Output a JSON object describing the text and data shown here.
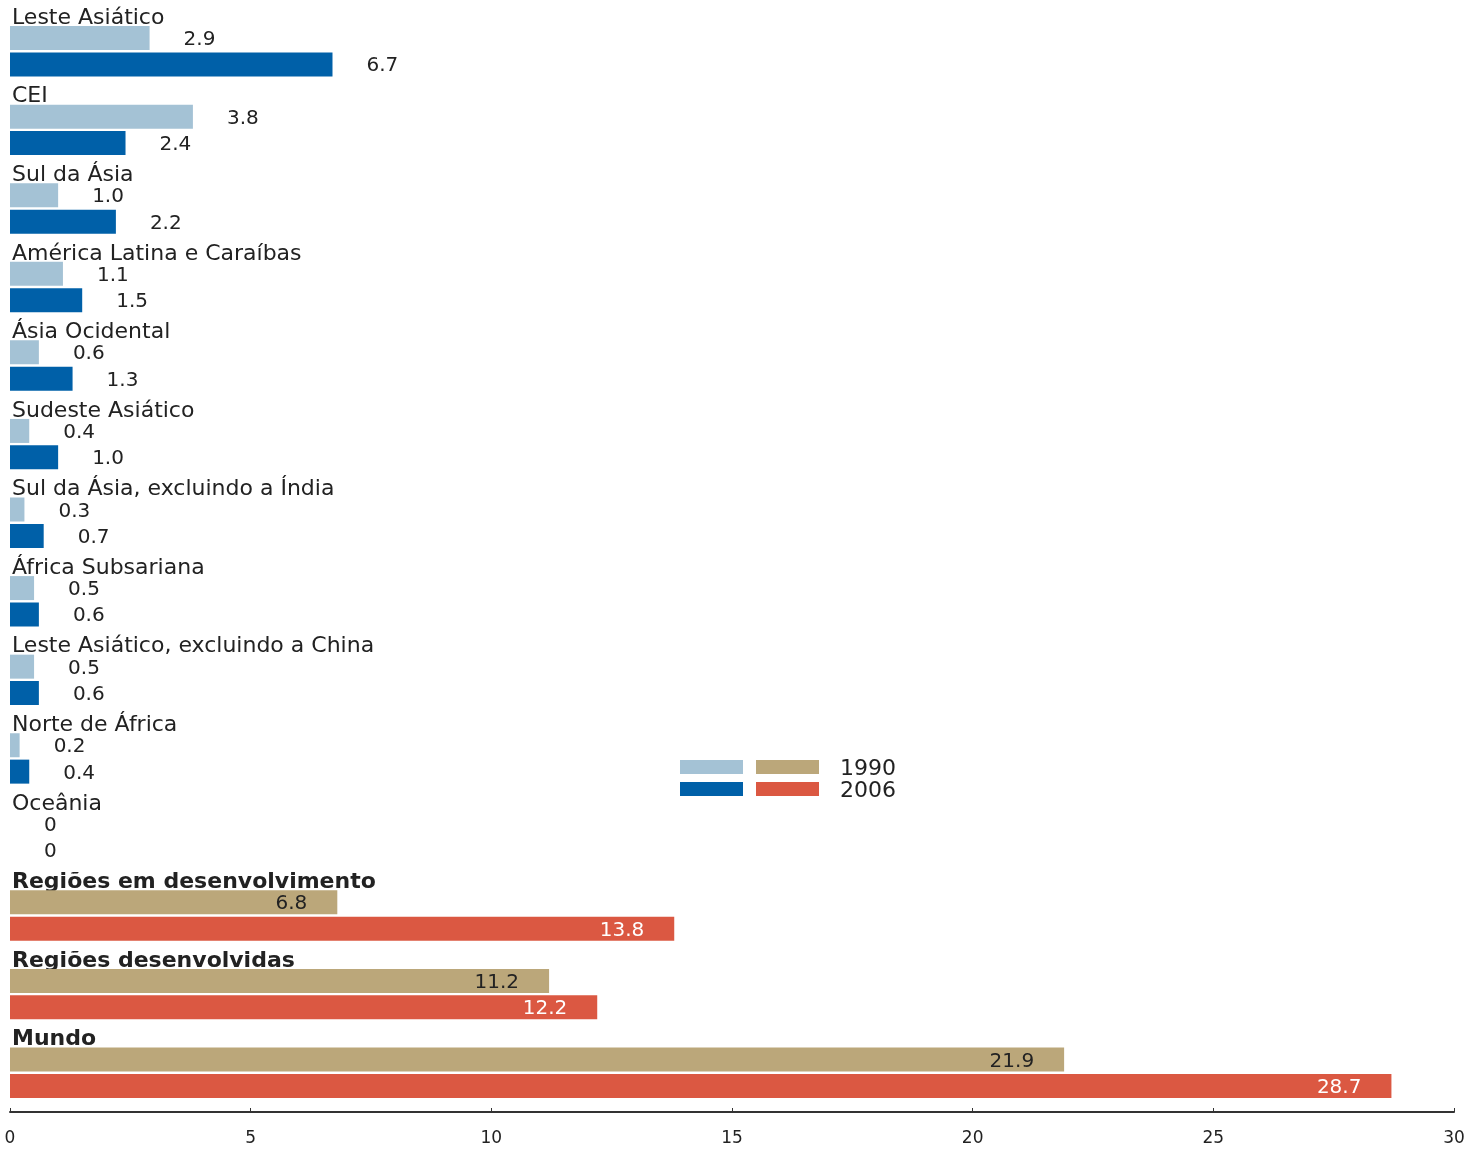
{
  "chart_data": {
    "type": "bar",
    "orientation": "horizontal",
    "categories": [
      "Leste Asiático",
      "CEI",
      "Sul da Ásia",
      "América Latina e Caraíbas",
      "Ásia Ocidental",
      "Sudeste Asiático",
      "Sul da Ásia, excluindo a Índia",
      "África Subsariana",
      "Leste Asiático, excluindo a China",
      "Norte de África",
      "Oceânia",
      "Regiões em desenvolvimento",
      "Regiões desenvolvidas",
      "Mundo"
    ],
    "series": [
      {
        "name": "1990",
        "color": "#a4c2d5",
        "colors": [
          "#a4c2d5",
          "#a4c2d5",
          "#a4c2d5",
          "#a4c2d5",
          "#a4c2d5",
          "#a4c2d5",
          "#a4c2d5",
          "#a4c2d5",
          "#a4c2d5",
          "#a4c2d5",
          "#a4c2d5",
          "#bba77a",
          "#bba77a",
          "#bba77a"
        ],
        "values": [
          2.9,
          3.8,
          1.0,
          1.1,
          0.6,
          0.4,
          0.3,
          0.5,
          0.5,
          0.2,
          0,
          6.8,
          11.2,
          21.9
        ],
        "value_labels": [
          "2.9",
          "3.8",
          "1.0",
          "1.1",
          "0.6",
          "0.4",
          "0.3",
          "0.5",
          "0.5",
          "0.2",
          "0",
          "6.8",
          "11.2",
          "21.9"
        ]
      },
      {
        "name": "2006",
        "color": "#0060a8",
        "colors": [
          "#0060a8",
          "#0060a8",
          "#0060a8",
          "#0060a8",
          "#0060a8",
          "#0060a8",
          "#0060a8",
          "#0060a8",
          "#0060a8",
          "#0060a8",
          "#0060a8",
          "#db5842",
          "#db5842",
          "#db5842"
        ],
        "values": [
          6.7,
          2.4,
          2.2,
          1.5,
          1.3,
          1.0,
          0.7,
          0.6,
          0.6,
          0.4,
          0,
          13.8,
          12.2,
          28.7
        ],
        "value_labels": [
          "6.7",
          "2.4",
          "2.2",
          "1.5",
          "1.3",
          "1.0",
          "0.7",
          "0.6",
          "0.6",
          "0.4",
          "0",
          "13.8",
          "12.2",
          "28.7"
        ]
      }
    ],
    "xlim": [
      0,
      30
    ],
    "xticks": [
      0,
      5,
      10,
      15,
      20,
      25,
      30
    ],
    "grid": false,
    "legend": "right"
  }
}
